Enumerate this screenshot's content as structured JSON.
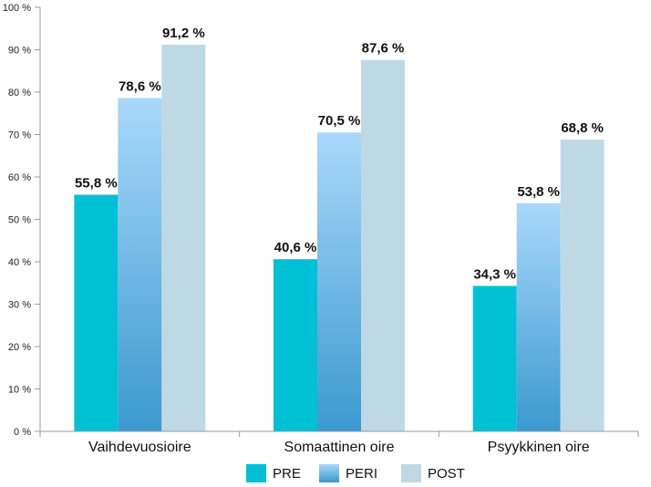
{
  "chart_data": {
    "type": "bar",
    "title": "",
    "xlabel": "",
    "ylabel": "",
    "ylim": [
      0,
      100
    ],
    "yticks": [
      0,
      10,
      20,
      30,
      40,
      50,
      60,
      70,
      80,
      90,
      100
    ],
    "ytick_labels": [
      "0 %",
      "10 %",
      "20 %",
      "30 %",
      "40 %",
      "50 %",
      "60 %",
      "70 %",
      "80 %",
      "90 %",
      "100 %"
    ],
    "categories": [
      "Vaihdevuosioire",
      "Somaattinen oire",
      "Psyykkinen oire"
    ],
    "series": [
      {
        "name": "PRE",
        "values": [
          55.8,
          40.6,
          34.3
        ],
        "labels": [
          "55,8 %",
          "40,6 %",
          "34,3 %"
        ],
        "color": "#00BCD4"
      },
      {
        "name": "PERI",
        "values": [
          78.6,
          70.5,
          53.8
        ],
        "labels": [
          "78,6 %",
          "70,5 %",
          "53,8 %"
        ],
        "color": "#6FB3E6"
      },
      {
        "name": "POST",
        "values": [
          91.2,
          87.6,
          68.8
        ],
        "labels": [
          "91,2 %",
          "87,6 %",
          "68,8 %"
        ],
        "color": "#BFD9E4"
      }
    ],
    "legend_position": "bottom",
    "grid": false
  }
}
